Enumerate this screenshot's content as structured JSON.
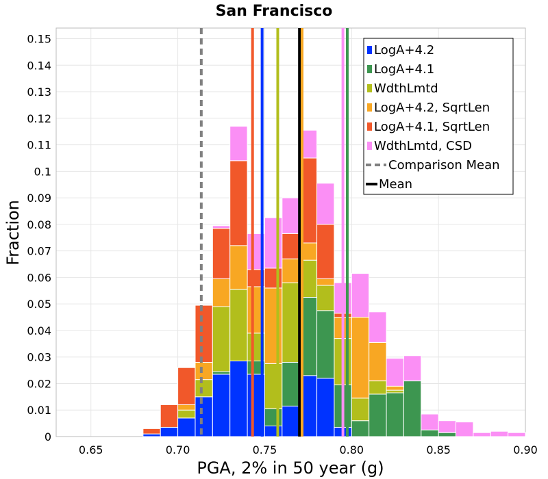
{
  "chart_data": {
    "type": "bar",
    "stacked": true,
    "title": "San Francisco",
    "xlabel": "PGA, 2% in 50 year (g)",
    "ylabel": "Fraction",
    "xlim": [
      0.63,
      0.9
    ],
    "ylim": [
      0,
      0.154
    ],
    "xticks": [
      "0.65",
      "0.70",
      "0.75",
      "0.80",
      "0.85",
      "0.90"
    ],
    "yticks": [
      "0",
      "0.01",
      "0.02",
      "0.03",
      "0.04",
      "0.05",
      "0.06",
      "0.07",
      "0.08",
      "0.09",
      "0.1",
      "0.11",
      "0.12",
      "0.13",
      "0.14",
      "0.15"
    ],
    "grid": true,
    "legend_position": "top-right",
    "bin_width": 0.01,
    "x": [
      0.685,
      0.695,
      0.705,
      0.715,
      0.725,
      0.735,
      0.745,
      0.755,
      0.765,
      0.775,
      0.785,
      0.795,
      0.805,
      0.815,
      0.825,
      0.835,
      0.845,
      0.855,
      0.865,
      0.875,
      0.885,
      0.895
    ],
    "series": [
      {
        "name": "LogA+4.2",
        "color": "#0033ff",
        "values": [
          0.001,
          0.0035,
          0.007,
          0.015,
          0.0235,
          0.0285,
          0.0235,
          0.004,
          0.0115,
          0.023,
          0.022,
          0.0035,
          0,
          0,
          0,
          0,
          0,
          0,
          0,
          0,
          0,
          0
        ]
      },
      {
        "name": "LogA+4.1",
        "color": "#3d9650",
        "values": [
          0,
          0,
          0,
          0,
          0.001,
          0,
          0.005,
          0.0065,
          0.0165,
          0.0295,
          0.0255,
          0.016,
          0.006,
          0.016,
          0.0165,
          0.021,
          0.0025,
          0.0015,
          0,
          0,
          0,
          0
        ]
      },
      {
        "name": "WdthLmtd",
        "color": "#b2be1c",
        "values": [
          0,
          0,
          0.003,
          0.0065,
          0.0245,
          0.027,
          0.0105,
          0.017,
          0.03,
          0.014,
          0.0095,
          0.0175,
          0.0085,
          0.005,
          0.001,
          0,
          0,
          0,
          0,
          0,
          0,
          0
        ]
      },
      {
        "name": "LogA+4.2, SqrtLen",
        "color": "#f8a723",
        "values": [
          0,
          0,
          0.002,
          0.0065,
          0.0105,
          0.0165,
          0.0175,
          0.0285,
          0.009,
          0.0065,
          0.0025,
          0.008,
          0.0305,
          0.0145,
          0.0015,
          0,
          0,
          0,
          0,
          0,
          0,
          0
        ]
      },
      {
        "name": "LogA+4.1, SqrtLen",
        "color": "#f1582a",
        "values": [
          0.002,
          0.0085,
          0.014,
          0.0215,
          0.019,
          0.032,
          0.0065,
          0.0075,
          0.0095,
          0.032,
          0.0205,
          0.0015,
          0,
          0,
          0,
          0,
          0,
          0,
          0,
          0,
          0,
          0
        ]
      },
      {
        "name": "WdthLmtd, CSD",
        "color": "#fb8ff5",
        "values": [
          0,
          0,
          0,
          0,
          0.001,
          0.013,
          0.0135,
          0.019,
          0.0135,
          0.0105,
          0.0155,
          0.0115,
          0.0165,
          0.0115,
          0.0105,
          0.0095,
          0.006,
          0.0045,
          0.0055,
          0.0015,
          0.002,
          0.0015
        ]
      }
    ],
    "reference_lines": [
      {
        "name": "Comparison Mean",
        "x": 0.7135,
        "color": "#808080",
        "dashed": true,
        "in_legend": true
      },
      {
        "name": "Mean",
        "x": 0.77,
        "color": "#000000",
        "dashed": false,
        "in_legend": true
      },
      {
        "x": 0.7485,
        "color": "#0033ff",
        "dashed": false,
        "in_legend": false
      },
      {
        "x": 0.7975,
        "color": "#3d9650",
        "dashed": false,
        "in_legend": false
      },
      {
        "x": 0.7575,
        "color": "#b2be1c",
        "dashed": false,
        "in_legend": false
      },
      {
        "x": 0.7715,
        "color": "#f8a723",
        "dashed": false,
        "in_legend": false
      },
      {
        "x": 0.743,
        "color": "#f1582a",
        "dashed": false,
        "in_legend": false
      },
      {
        "x": 0.795,
        "color": "#fb8ff5",
        "dashed": false,
        "in_legend": false
      }
    ]
  }
}
